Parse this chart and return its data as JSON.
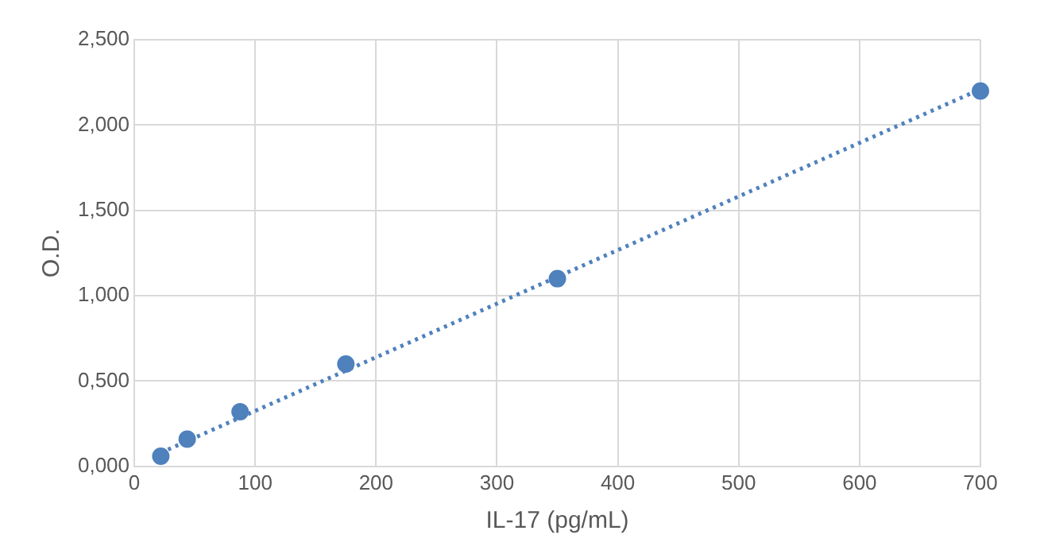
{
  "chart_data": {
    "type": "scatter",
    "xlabel": "IL-17 (pg/mL)",
    "ylabel": "O.D.",
    "series": [
      {
        "color": "#4f81bd",
        "x": [
          21.9,
          43.75,
          87.5,
          175,
          350,
          700
        ],
        "values": [
          0.06,
          0.16,
          0.32,
          0.6,
          1.1,
          2.2
        ],
        "marker": "circle"
      },
      {
        "type": "line",
        "color": "#4f81bd",
        "x": [
          21.9,
          700
        ],
        "values": [
          0.08,
          2.21
        ],
        "line_style": "dotted",
        "marker": "none"
      }
    ],
    "xlim": [
      0,
      700
    ],
    "xticks": [
      0,
      100,
      200,
      300,
      400,
      500,
      600,
      700
    ],
    "ylim": [
      0,
      2.5
    ],
    "yticks": [
      {
        "value": 0,
        "label": "0,000"
      },
      {
        "value": 0.5,
        "label": "0,500"
      },
      {
        "value": 1,
        "label": "1,000"
      },
      {
        "value": 1.5,
        "label": "1,500"
      },
      {
        "value": 2,
        "label": "2,000"
      },
      {
        "value": 2.5,
        "label": "2,500"
      }
    ],
    "grid": true,
    "legend": false
  }
}
